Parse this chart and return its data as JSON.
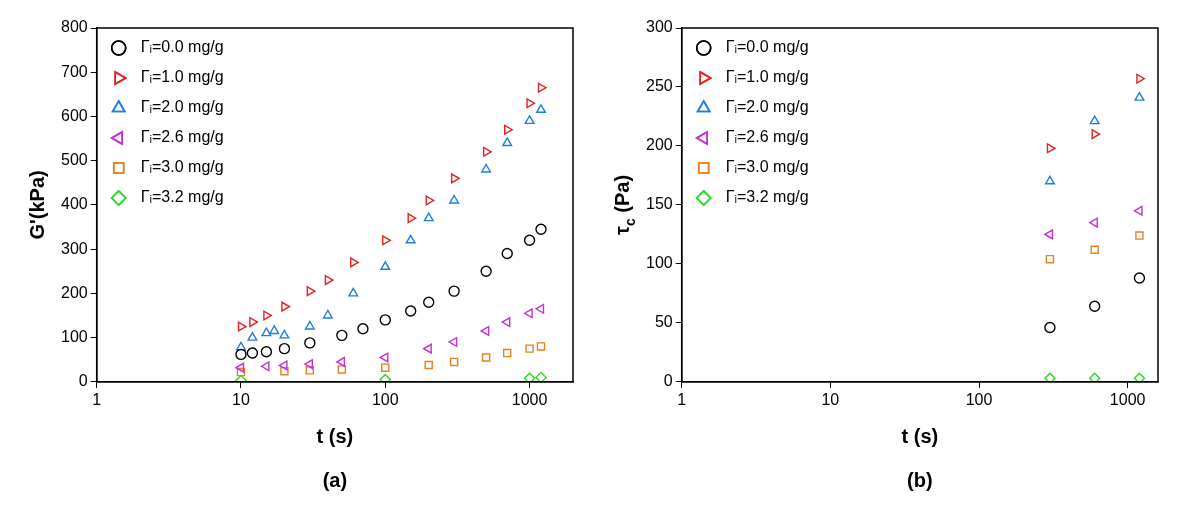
{
  "chart_data": [
    {
      "type": "scatter",
      "xlabel": "t (s)",
      "ylabel": "G'(kPa)",
      "annotations": [
        "(a)"
      ],
      "log": "x",
      "xlim": [
        1,
        2000
      ],
      "xticks": [
        1,
        10,
        100,
        1000
      ],
      "ylim": [
        0,
        800
      ],
      "yticks": [
        0,
        100,
        200,
        300,
        400,
        500,
        600,
        700,
        800
      ],
      "grid": false,
      "legend": "top left",
      "series": [
        {
          "name": "Γᵢ=0.0 mg/g",
          "color": "#000000",
          "marker": "circle",
          "x": [
            10,
            12,
            15,
            20,
            30,
            50,
            70,
            100,
            150,
            200,
            300,
            500,
            700,
            1000,
            1200
          ],
          "values": [
            62,
            65,
            68,
            75,
            88,
            105,
            120,
            140,
            160,
            180,
            205,
            250,
            290,
            320,
            345
          ]
        },
        {
          "name": "Γᵢ=1.0 mg/g",
          "color": "#e8201e",
          "marker": "triangle-right",
          "x": [
            10,
            12,
            15,
            20,
            30,
            40,
            60,
            100,
            150,
            200,
            300,
            500,
            700,
            1000,
            1200
          ],
          "values": [
            125,
            135,
            150,
            170,
            205,
            230,
            270,
            320,
            370,
            410,
            460,
            520,
            570,
            630,
            665
          ]
        },
        {
          "name": "Γᵢ=2.0 mg/g",
          "color": "#1f7fe0",
          "marker": "triangle",
          "x": [
            10,
            12,
            15,
            17,
            20,
            30,
            40,
            60,
            100,
            150,
            200,
            300,
            500,
            700,
            1000,
            1200
          ],
          "values": [
            78,
            100,
            110,
            115,
            105,
            125,
            150,
            200,
            260,
            320,
            370,
            410,
            480,
            540,
            590,
            615
          ]
        },
        {
          "name": "Γᵢ=2.6 mg/g",
          "color": "#c42fd8",
          "marker": "triangle-left",
          "x": [
            10,
            15,
            20,
            30,
            50,
            100,
            200,
            300,
            500,
            700,
            1000,
            1200
          ],
          "values": [
            32,
            35,
            37,
            40,
            45,
            55,
            75,
            90,
            115,
            135,
            155,
            165
          ]
        },
        {
          "name": "Γᵢ=3.0 mg/g",
          "color": "#e8801e",
          "marker": "square",
          "x": [
            10,
            20,
            30,
            50,
            100,
            200,
            300,
            500,
            700,
            1000,
            1200
          ],
          "values": [
            22,
            24,
            26,
            28,
            32,
            38,
            45,
            55,
            65,
            75,
            80
          ]
        },
        {
          "name": "Γᵢ=3.2 mg/g",
          "color": "#22dd22",
          "marker": "diamond",
          "x": [
            10,
            100,
            1000,
            1200
          ],
          "values": [
            3,
            5,
            8,
            10
          ]
        }
      ]
    },
    {
      "type": "scatter",
      "xlabel": "t (s)",
      "ylabel": "τ$_{c}$ (Pa)",
      "annotations": [
        "(b)"
      ],
      "log": "x",
      "xlim": [
        1,
        1600
      ],
      "xticks": [
        1,
        10,
        100,
        1000
      ],
      "ylim": [
        0,
        300
      ],
      "yticks": [
        0,
        50,
        100,
        150,
        200,
        250,
        300
      ],
      "grid": false,
      "legend": "top left",
      "series": [
        {
          "name": "Γᵢ=0.0 mg/g",
          "color": "#000000",
          "marker": "circle",
          "x": [
            300,
            600,
            1200
          ],
          "values": [
            46,
            64,
            88
          ]
        },
        {
          "name": "Γᵢ=1.0 mg/g",
          "color": "#e8201e",
          "marker": "triangle-right",
          "x": [
            300,
            600,
            1200
          ],
          "values": [
            198,
            210,
            257
          ]
        },
        {
          "name": "Γᵢ=2.0 mg/g",
          "color": "#1f7fe0",
          "marker": "triangle",
          "x": [
            300,
            600,
            1200
          ],
          "values": [
            170,
            221,
            241
          ]
        },
        {
          "name": "Γᵢ=2.6 mg/g",
          "color": "#c42fd8",
          "marker": "triangle-left",
          "x": [
            300,
            600,
            1200
          ],
          "values": [
            125,
            135,
            145
          ]
        },
        {
          "name": "Γᵢ=3.0 mg/g",
          "color": "#e8801e",
          "marker": "square",
          "x": [
            300,
            600,
            1200
          ],
          "values": [
            104,
            112,
            124
          ]
        },
        {
          "name": "Γᵢ=3.2 mg/g",
          "color": "#22dd22",
          "marker": "diamond",
          "x": [
            300,
            600,
            1200
          ],
          "values": [
            3,
            3,
            3
          ]
        }
      ]
    }
  ]
}
